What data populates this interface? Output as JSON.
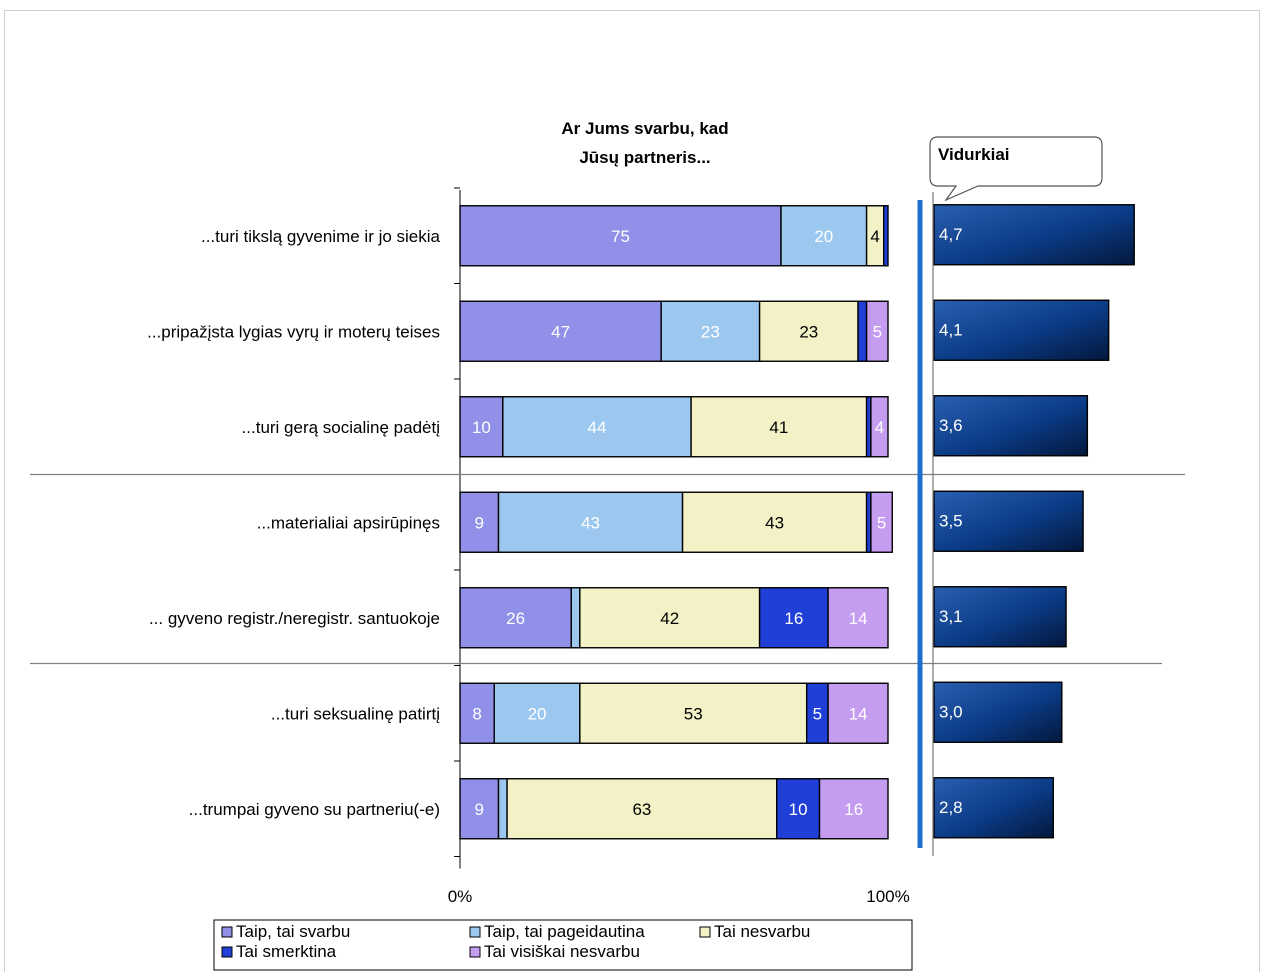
{
  "chart_data": {
    "type": "bar",
    "stacked": true,
    "orientation": "horizontal",
    "percent_stacked": true,
    "title": "Ar Jums svarbu, kad Jūsų partneris...",
    "categories": [
      "...turi tikslą gyvenime ir jo siekia",
      "...pripažįsta  lygias vyrų ir moterų   teises",
      "...turi gerą socialinę padėtį",
      "...materialiai apsirūpinęs",
      "... gyveno registr./neregistr. santuokoje",
      "...turi seksualinę patirtį",
      "...trumpai gyveno su partneriu(-e)"
    ],
    "series": [
      {
        "name": "Taip, tai svarbu",
        "color": "#9090e8",
        "values": [
          75,
          47,
          10,
          9,
          26,
          8,
          9
        ]
      },
      {
        "name": "Taip, tai pageidautina",
        "color": "#9cc8f0",
        "values": [
          20,
          23,
          44,
          43,
          2,
          20,
          2
        ]
      },
      {
        "name": "Tai nesvarbu",
        "color": "#f2f2c6",
        "values": [
          4,
          23,
          41,
          43,
          42,
          53,
          63
        ]
      },
      {
        "name": "Tai smerktina",
        "color": "#1f3fd6",
        "values": [
          1,
          2,
          1,
          1,
          16,
          5,
          10
        ]
      },
      {
        "name": "Tai visiškai nesvarbu",
        "color": "#c49cf0",
        "values": [
          0,
          5,
          4,
          5,
          14,
          14,
          16
        ]
      }
    ],
    "data_labels": [
      [
        "75",
        "20",
        "4",
        "",
        ""
      ],
      [
        "47",
        "23",
        "23",
        "",
        "5"
      ],
      [
        "10",
        "44",
        "41",
        "",
        "4"
      ],
      [
        "9",
        "43",
        "43",
        "",
        "5"
      ],
      [
        "26",
        "",
        "42",
        "16",
        "14"
      ],
      [
        "8",
        "20",
        "53",
        "5",
        "14"
      ],
      [
        "9",
        "",
        "63",
        "10",
        "16"
      ]
    ],
    "x_ticks": [
      "0%",
      "100%"
    ],
    "xlim": [
      0,
      100
    ],
    "averages": {
      "label": "Vidurkiai",
      "values": [
        4.7,
        4.1,
        3.6,
        3.5,
        3.1,
        3.0,
        2.8
      ],
      "labels": [
        "4,7",
        "4,1",
        "3,6",
        "3,5",
        "3,1",
        "3,0",
        "2,8"
      ],
      "color": "#0a3f8c"
    },
    "group_dividers_after": [
      2,
      4
    ],
    "legend_position": "bottom",
    "grid": false
  }
}
